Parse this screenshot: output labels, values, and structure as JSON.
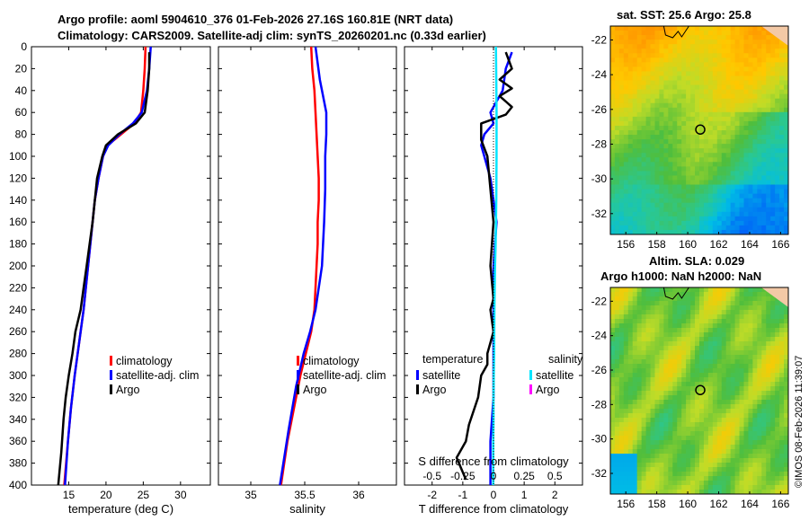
{
  "figure": {
    "title_line1": "Argo profile: aoml 5904610_376 01-Feb-2026 27.16S 160.81E (NRT data)",
    "title_line2": "Climatology: CARS2009. Satellite-adj clim: synTS_20260201.nc (0.33d earlier)",
    "sst_title": "sat. SST: 25.6 Argo: 25.8",
    "sla_title1": "Altim. SLA: 0.029",
    "sla_title2": "Argo h1000: NaN h2000: NaN",
    "credit": "©IMOS 08-Feb-2026 11:39:07"
  },
  "colors": {
    "climatology": "#ff0000",
    "satellite": "#0000ff",
    "argo": "#000000",
    "salinity_satellite": "#00e5ff",
    "salinity_argo": "#ff00ff"
  },
  "chart_data": [
    {
      "type": "line",
      "name": "temperature-profile",
      "xlabel": "temperature (deg C)",
      "xlim": [
        10,
        34
      ],
      "xticks": [
        15,
        20,
        25,
        30
      ],
      "ylim": [
        0,
        400
      ],
      "yticks": [
        0,
        20,
        40,
        60,
        80,
        100,
        120,
        140,
        160,
        180,
        200,
        220,
        240,
        260,
        280,
        300,
        320,
        340,
        360,
        380,
        400
      ],
      "legend": {
        "position": "bottom-right",
        "entries": [
          "climatology",
          "satellite-adj. clim",
          "Argo"
        ]
      },
      "series": [
        {
          "name": "climatology",
          "color": "#ff0000",
          "x": [
            25.3,
            25.2,
            25.0,
            24.7,
            23.8,
            22.0,
            20.2,
            19.6,
            19.0,
            18.5,
            18.2,
            17.9,
            17.6,
            17.3,
            17.0,
            16.6,
            16.2,
            15.8,
            15.3,
            14.9,
            14.4
          ],
          "y": [
            0,
            20,
            40,
            60,
            70,
            80,
            90,
            100,
            120,
            140,
            160,
            180,
            200,
            220,
            240,
            260,
            280,
            300,
            330,
            360,
            400
          ]
        },
        {
          "name": "satellite-adj. clim",
          "color": "#0000ff",
          "x": [
            26.0,
            25.8,
            25.5,
            24.8,
            23.6,
            21.8,
            20.3,
            19.6,
            19.0,
            18.5,
            18.2,
            17.9,
            17.6,
            17.3,
            17.0,
            16.6,
            16.2,
            15.8,
            15.3,
            14.9,
            14.5
          ],
          "y": [
            0,
            20,
            40,
            60,
            70,
            80,
            90,
            100,
            120,
            140,
            160,
            180,
            200,
            220,
            240,
            260,
            280,
            300,
            330,
            360,
            400
          ]
        },
        {
          "name": "Argo",
          "color": "#000000",
          "x": [
            25.8,
            25.8,
            25.6,
            25.2,
            24.0,
            21.6,
            20.0,
            19.5,
            18.8,
            18.5,
            18.2,
            17.8,
            17.4,
            17.0,
            16.6,
            15.9,
            15.5,
            15.0,
            14.6,
            14.3,
            14.0,
            13.6
          ],
          "y": [
            5,
            20,
            40,
            60,
            70,
            80,
            90,
            100,
            120,
            140,
            160,
            180,
            200,
            220,
            240,
            260,
            280,
            300,
            320,
            340,
            370,
            400
          ]
        }
      ]
    },
    {
      "type": "line",
      "name": "salinity-profile",
      "xlabel": "salinity",
      "xlim": [
        34.7,
        36.35
      ],
      "xticks": [
        35,
        35.5,
        36
      ],
      "ylim": [
        0,
        400
      ],
      "legend": {
        "position": "bottom-right",
        "entries": [
          "climatology",
          "satellite-adj. clim",
          "Argo"
        ]
      },
      "series": [
        {
          "name": "climatology",
          "color": "#ff0000",
          "x": [
            35.56,
            35.57,
            35.59,
            35.6,
            35.61,
            35.62,
            35.63,
            35.63,
            35.62,
            35.62,
            35.61,
            35.6,
            35.59,
            35.56,
            35.51,
            35.46,
            35.4,
            35.34,
            35.28
          ],
          "y": [
            0,
            20,
            40,
            60,
            80,
            100,
            120,
            140,
            160,
            180,
            200,
            220,
            240,
            260,
            280,
            300,
            330,
            360,
            400
          ]
        },
        {
          "name": "satellite-adj. clim",
          "color": "#0000ff",
          "x": [
            35.6,
            35.62,
            35.64,
            35.66,
            35.68,
            35.7,
            35.7,
            35.69,
            35.69,
            35.68,
            35.67,
            35.66,
            35.63,
            35.6,
            35.55,
            35.49,
            35.42,
            35.35,
            35.27
          ],
          "y": [
            0,
            15,
            30,
            40,
            50,
            60,
            80,
            100,
            130,
            160,
            180,
            200,
            220,
            240,
            260,
            280,
            310,
            350,
            400
          ]
        },
        {
          "name": "Argo",
          "color": "#000000",
          "x": [],
          "y": []
        }
      ]
    },
    {
      "type": "line",
      "name": "difference-profile",
      "xlabel": "T difference from climatology",
      "xlabel_top": "S difference from climatology",
      "xlim": [
        -2.9,
        2.9
      ],
      "xticks": [
        -2,
        -1,
        0,
        1,
        2
      ],
      "xticks_top_labels": [
        "-0.5",
        "-0.25",
        "0",
        "0.25",
        "0.5"
      ],
      "ylim": [
        0,
        400
      ],
      "legend": {
        "temperature_heading": "temperature",
        "salinity_heading": "salinity",
        "temperature_entries": [
          "satellite",
          "Argo"
        ],
        "salinity_entries": [
          "satellite",
          "Argo"
        ]
      },
      "series": [
        {
          "name": "temperature satellite",
          "color": "#0000ff",
          "x": [
            0.6,
            0.4,
            0.3,
            -0.1,
            0.0,
            -0.3,
            -0.4,
            -0.3,
            -0.1,
            0.0,
            0.1,
            0.05,
            0.0,
            0.0,
            0.0,
            0.0,
            0.0,
            -0.05,
            -0.1,
            -0.1,
            -0.1
          ],
          "y": [
            5,
            20,
            40,
            60,
            70,
            80,
            90,
            100,
            120,
            140,
            160,
            180,
            200,
            240,
            280,
            300,
            320,
            340,
            360,
            380,
            400
          ]
        },
        {
          "name": "temperature Argo",
          "color": "#000000",
          "x": [
            0.4,
            0.6,
            0.2,
            0.6,
            0.2,
            0.4,
            0.6,
            0.4,
            -0.4,
            -0.4,
            -0.2,
            -0.1,
            0.0,
            -0.1,
            0.0,
            -0.1,
            0.0,
            -0.2,
            -0.2,
            -0.4,
            -0.5,
            -0.8,
            -0.9,
            -1.2,
            -0.9
          ],
          "y": [
            5,
            20,
            30,
            38,
            45,
            50,
            55,
            62,
            70,
            85,
            100,
            130,
            160,
            200,
            230,
            240,
            260,
            280,
            290,
            300,
            320,
            345,
            360,
            375,
            395
          ]
        },
        {
          "name": "salinity satellite",
          "color": "#00e5ff",
          "x": [
            0.08,
            0.09,
            0.1,
            0.1,
            0.09,
            0.07,
            0.05,
            0.03,
            0.02,
            0.01,
            0.0,
            0.0,
            -0.01,
            -0.01,
            -0.01
          ],
          "y": [
            0,
            30,
            60,
            100,
            140,
            180,
            200,
            240,
            280,
            300,
            320,
            340,
            360,
            380,
            400
          ]
        }
      ]
    },
    {
      "type": "heatmap",
      "name": "sst-map",
      "title": "sat. SST: 25.6 Argo: 25.8",
      "xlim": [
        155,
        166.5
      ],
      "ylim": [
        -33.2,
        -21.2
      ],
      "xticks": [
        156,
        158,
        160,
        162,
        164,
        166
      ],
      "yticks": [
        -22,
        -24,
        -26,
        -28,
        -30,
        -32
      ],
      "marker": {
        "lon": 160.81,
        "lat": -27.16
      }
    },
    {
      "type": "heatmap",
      "name": "sla-map",
      "title": "Altim. SLA: 0.029",
      "xlim": [
        155,
        166.5
      ],
      "ylim": [
        -33.2,
        -21.2
      ],
      "xticks": [
        156,
        158,
        160,
        162,
        164,
        166
      ],
      "yticks": [
        -22,
        -24,
        -26,
        -28,
        -30,
        -32
      ],
      "marker": {
        "lon": 160.81,
        "lat": -27.16
      }
    }
  ]
}
